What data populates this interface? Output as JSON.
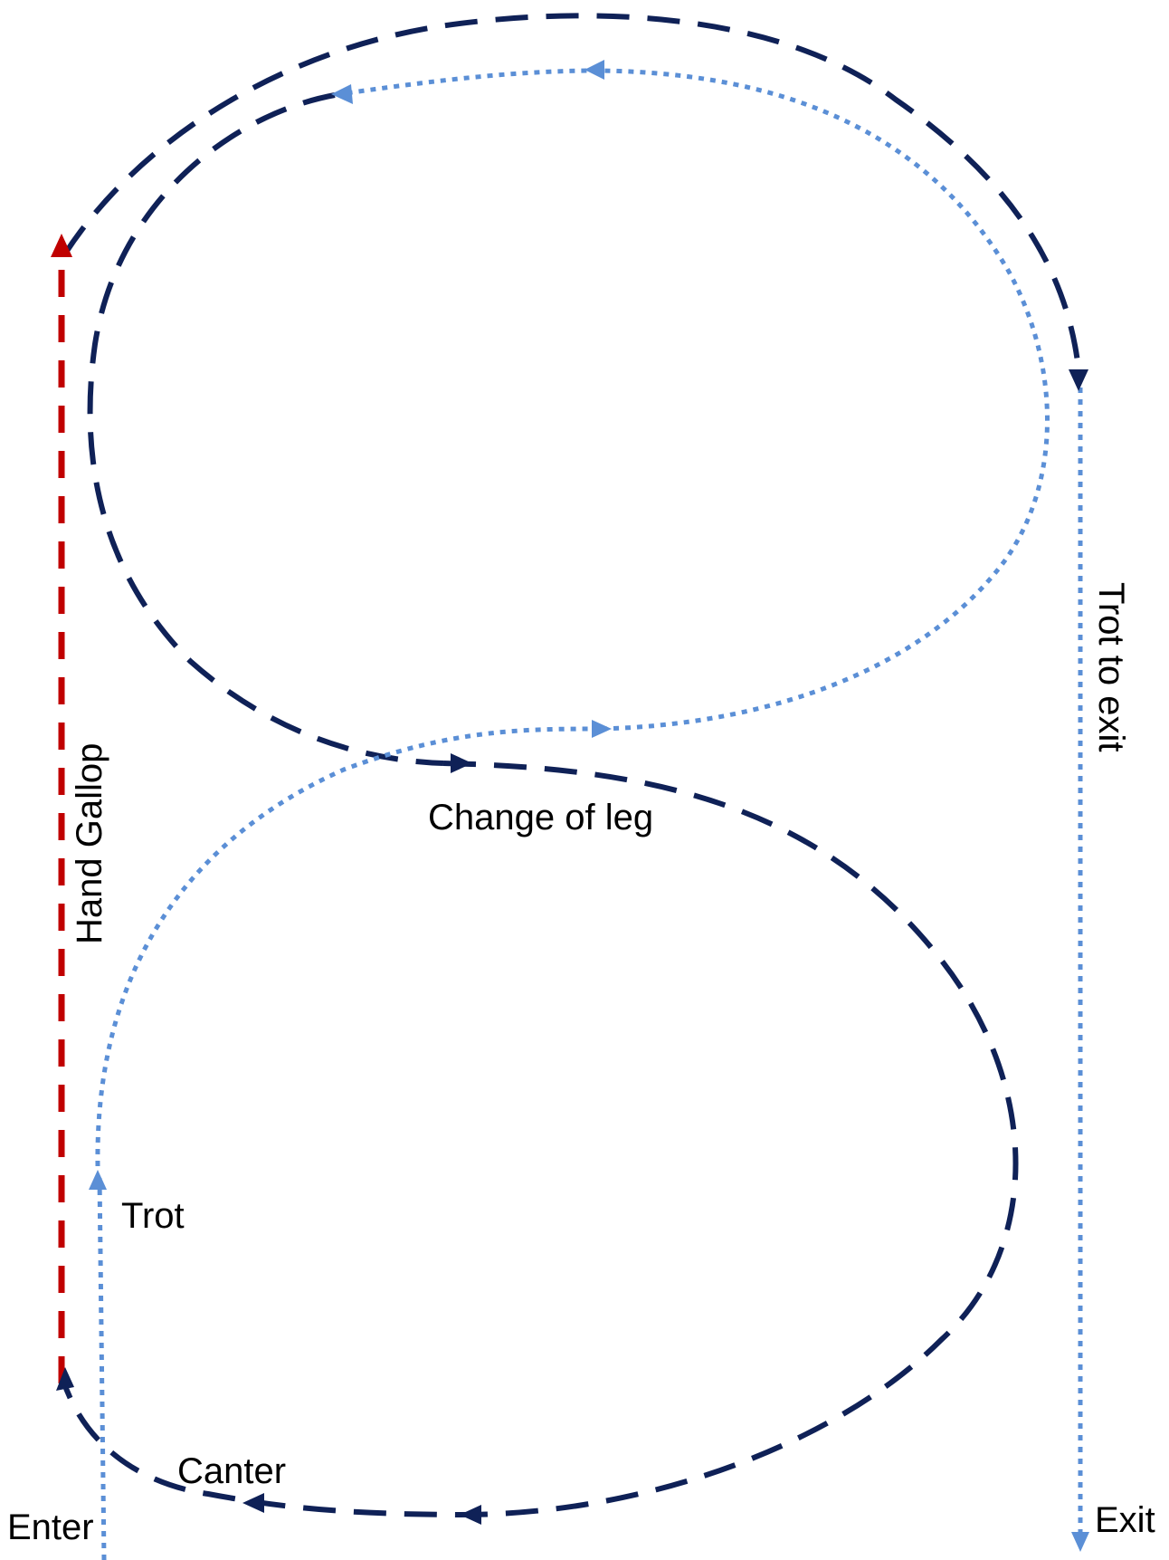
{
  "labels": {
    "enter": "Enter",
    "canter": "Canter",
    "trot": "Trot",
    "hand_gallop": "Hand Gallop",
    "change_of_leg": "Change of leg",
    "trot_to_exit": "Trot to exit",
    "exit": "Exit"
  },
  "colors": {
    "canter_path": "#0f2157",
    "trot_path": "#5b8fd6",
    "gallop_path": "#c00000"
  }
}
